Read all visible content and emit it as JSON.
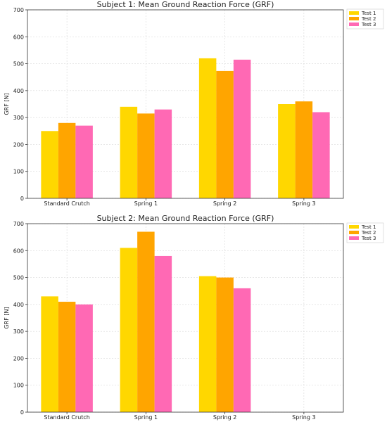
{
  "chart_data": [
    {
      "type": "bar",
      "title": "Subject 1: Mean Ground Reaction Force (GRF)",
      "xlabel": "",
      "ylabel": "GRF [N]",
      "ylim": [
        0,
        700
      ],
      "yticks": [
        0,
        100,
        200,
        300,
        400,
        500,
        600,
        700
      ],
      "categories": [
        "Standard Crutch",
        "Spring 1",
        "Spring 2",
        "Spring 3"
      ],
      "grid": true,
      "legend": "top-right",
      "series": [
        {
          "name": "Test 1",
          "color": "#FFD700",
          "values": [
            250,
            340,
            520,
            350
          ]
        },
        {
          "name": "Test 2",
          "color": "#FFA500",
          "values": [
            280,
            315,
            473,
            360
          ]
        },
        {
          "name": "Test 3",
          "color": "#FF69B4",
          "values": [
            270,
            330,
            515,
            320
          ]
        }
      ]
    },
    {
      "type": "bar",
      "title": "Subject 2: Mean Ground Reaction Force (GRF)",
      "xlabel": "",
      "ylabel": "GRF [N]",
      "ylim": [
        0,
        700
      ],
      "yticks": [
        0,
        100,
        200,
        300,
        400,
        500,
        600,
        700
      ],
      "categories": [
        "Standard Crutch",
        "Spring 1",
        "Spring 2",
        "Spring 3"
      ],
      "grid": true,
      "legend": "top-right",
      "series": [
        {
          "name": "Test 1",
          "color": "#FFD700",
          "values": [
            430,
            610,
            505,
            null
          ]
        },
        {
          "name": "Test 2",
          "color": "#FFA500",
          "values": [
            410,
            670,
            500,
            null
          ]
        },
        {
          "name": "Test 3",
          "color": "#FF69B4",
          "values": [
            400,
            580,
            460,
            null
          ]
        }
      ]
    }
  ]
}
